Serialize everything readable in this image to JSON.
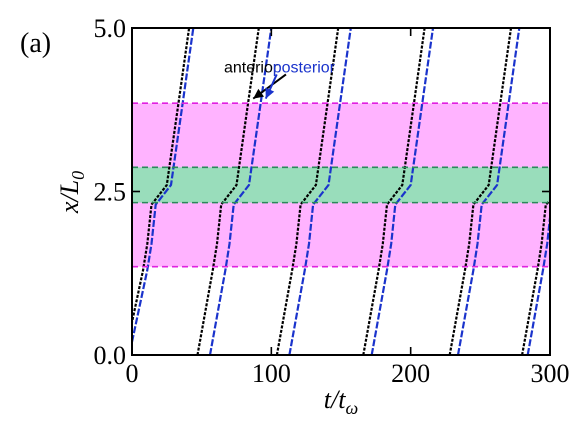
{
  "chart_data": {
    "type": "line",
    "panel_label": "(a)",
    "xlabel": {
      "main": "t/t",
      "sub": "ω"
    },
    "ylabel": {
      "main": "x/L",
      "sub": "0"
    },
    "xlim": [
      0,
      300
    ],
    "ylim": [
      0.0,
      5.0
    ],
    "xticks": [
      0,
      100,
      200,
      300
    ],
    "xtick_labels": [
      "0",
      "100",
      "200",
      "300"
    ],
    "yticks": [
      0.0,
      2.5,
      5.0
    ],
    "ytick_labels": [
      "0.0",
      "2.5",
      "5.0"
    ],
    "bands": [
      {
        "name": "outer-band",
        "y0": 1.35,
        "y1": 3.85,
        "fill": "#ffb3ff",
        "edge": "#e020e0"
      },
      {
        "name": "inner-band",
        "y0": 2.33,
        "y1": 2.87,
        "fill": "#99ddbb",
        "edge": "#2a8a5a"
      }
    ],
    "colors": {
      "anterior": "#000000",
      "posterior": "#1a33cc"
    },
    "series": [
      {
        "name": "anterior",
        "color": "#000000",
        "x": [
          -3,
          8,
          11,
          14,
          25,
          33,
          41
        ],
        "y": [
          0.2,
          1.3,
          1.7,
          2.3,
          2.6,
          3.8,
          5.0
        ]
      },
      {
        "name": "posterior",
        "color": "#1a33cc",
        "x": [
          0,
          11,
          14,
          17,
          28,
          36,
          44
        ],
        "y": [
          0.2,
          1.3,
          1.7,
          2.3,
          2.6,
          3.8,
          5.0
        ]
      },
      {
        "name": "anterior",
        "color": "#000000",
        "x": [
          47,
          58,
          61,
          64,
          75,
          83,
          91
        ],
        "y": [
          0.0,
          1.3,
          1.7,
          2.3,
          2.6,
          3.8,
          5.0
        ]
      },
      {
        "name": "posterior",
        "color": "#1a33cc",
        "x": [
          56,
          67,
          70,
          73,
          84,
          92,
          100
        ],
        "y": [
          0.0,
          1.3,
          1.7,
          2.3,
          2.6,
          3.8,
          5.0
        ]
      },
      {
        "name": "anterior",
        "color": "#000000",
        "x": [
          104,
          115,
          118,
          121,
          132,
          140,
          148
        ],
        "y": [
          0.0,
          1.3,
          1.7,
          2.3,
          2.6,
          3.8,
          5.0
        ]
      },
      {
        "name": "posterior",
        "color": "#1a33cc",
        "x": [
          113,
          124,
          127,
          130,
          141,
          149,
          157
        ],
        "y": [
          0.0,
          1.3,
          1.7,
          2.3,
          2.6,
          3.8,
          5.0
        ]
      },
      {
        "name": "anterior",
        "color": "#000000",
        "x": [
          166,
          177,
          180,
          183,
          194,
          202,
          210
        ],
        "y": [
          0.0,
          1.3,
          1.7,
          2.3,
          2.6,
          3.8,
          5.0
        ]
      },
      {
        "name": "posterior",
        "color": "#1a33cc",
        "x": [
          172,
          183,
          186,
          189,
          200,
          208,
          216
        ],
        "y": [
          0.0,
          1.3,
          1.7,
          2.3,
          2.6,
          3.8,
          5.0
        ]
      },
      {
        "name": "anterior",
        "color": "#000000",
        "x": [
          228,
          239,
          242,
          245,
          256,
          264,
          272
        ],
        "y": [
          0.0,
          1.3,
          1.7,
          2.3,
          2.6,
          3.8,
          5.0
        ]
      },
      {
        "name": "posterior",
        "color": "#1a33cc",
        "x": [
          234,
          245,
          248,
          251,
          262,
          270,
          278
        ],
        "y": [
          0.0,
          1.3,
          1.7,
          2.3,
          2.6,
          3.8,
          5.0
        ]
      },
      {
        "name": "anterior",
        "color": "#000000",
        "x": [
          280,
          291,
          294,
          297,
          300
        ],
        "y": [
          0.0,
          1.3,
          1.7,
          2.3,
          2.36
        ]
      },
      {
        "name": "posterior",
        "color": "#1a33cc",
        "x": [
          284,
          295,
          298,
          300
        ],
        "y": [
          0.0,
          1.3,
          1.7,
          2.1
        ]
      }
    ],
    "annotations": [
      {
        "text": "anterior",
        "color": "#000000",
        "text_at": [
          66,
          4.32
        ],
        "arrow_to": [
          87,
          3.92
        ]
      },
      {
        "text": "posterior",
        "color": "#1a33cc",
        "text_at": [
          101,
          4.32
        ],
        "arrow_to": [
          96,
          3.92
        ]
      }
    ]
  }
}
